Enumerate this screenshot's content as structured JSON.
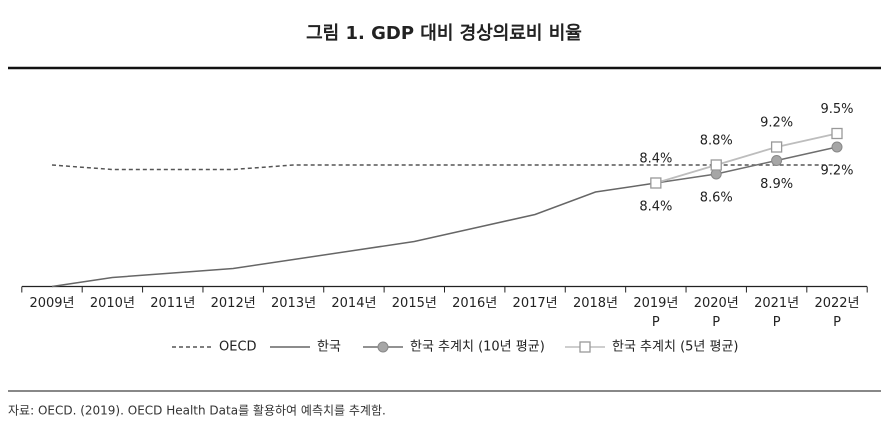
{
  "chart_data": {
    "type": "line",
    "title": "그림 1.  GDP 대비 경상의료비 비율",
    "categories": [
      "2009년",
      "2010년",
      "2011년",
      "2012년",
      "2013년",
      "2014년",
      "2015년",
      "2016년",
      "2017년",
      "2018년",
      "2019년",
      "2020년",
      "2021년",
      "2022년"
    ],
    "category_sublabels": [
      null,
      null,
      null,
      null,
      null,
      null,
      null,
      null,
      null,
      null,
      "P",
      "P",
      "P",
      "P"
    ],
    "ylim": [
      6.1,
      10.1
    ],
    "series": [
      {
        "name": "OECD",
        "color": "#555555",
        "dash": true,
        "marker": null,
        "values": [
          8.8,
          8.7,
          8.7,
          8.7,
          8.8,
          8.8,
          8.8,
          8.8,
          8.8,
          8.8,
          8.8,
          8.8,
          8.8,
          8.8
        ]
      },
      {
        "name": "한국",
        "color": "#666666",
        "dash": false,
        "marker": null,
        "values": [
          6.1,
          6.3,
          6.4,
          6.5,
          6.7,
          6.9,
          7.1,
          7.4,
          7.7,
          8.2,
          8.4,
          null,
          null,
          null
        ]
      },
      {
        "name": "한국 추계치 (10년 평균)",
        "color": "#6e6e6e",
        "dash": false,
        "marker": "circle",
        "marker_fill": "#a6a6a6",
        "label_position": "below",
        "highlight_index": 2,
        "values": [
          null,
          null,
          null,
          null,
          null,
          null,
          null,
          null,
          null,
          null,
          8.4,
          8.6,
          8.9,
          9.2
        ],
        "value_labels": [
          null,
          null,
          null,
          null,
          null,
          null,
          null,
          null,
          null,
          null,
          "8.4%",
          "8.6%",
          "8.9%",
          "9.2%"
        ]
      },
      {
        "name": "한국 추계치 (5년 평균)",
        "color": "#bdbdbd",
        "dash": false,
        "marker": "square",
        "marker_fill": "#ffffff",
        "label_position": "above",
        "highlight_index": 1,
        "values": [
          null,
          null,
          null,
          null,
          null,
          null,
          null,
          null,
          null,
          null,
          8.4,
          8.8,
          9.2,
          9.5
        ],
        "value_labels": [
          null,
          null,
          null,
          null,
          null,
          null,
          null,
          null,
          null,
          null,
          "8.4%",
          "8.8%",
          "9.2%",
          "9.5%"
        ]
      }
    ],
    "source": "자료: OECD. (2019). OECD Health Data를 활용하여 예측치를 추계함."
  }
}
